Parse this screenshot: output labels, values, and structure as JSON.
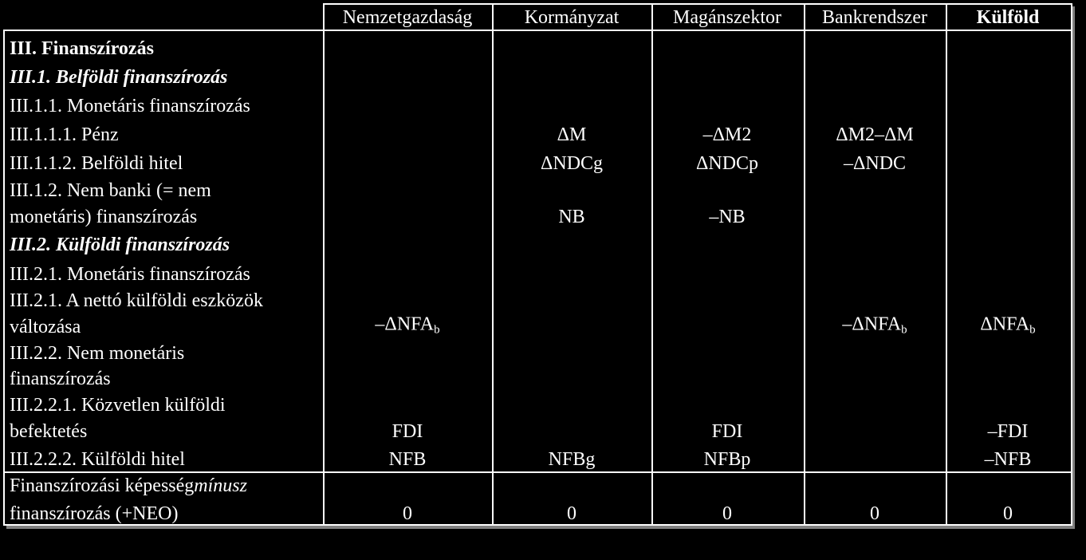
{
  "header": [
    "Nemzetgazdaság",
    "Kormányzat",
    "Magánszektor",
    "Bankrendszer",
    "Külföld"
  ],
  "rows": [
    {
      "label": [
        "III. Finanszírozás"
      ],
      "style": "bold",
      "cells": [
        null,
        null,
        null,
        null,
        null
      ]
    },
    {
      "label": [
        "III.1. Belföldi finanszírozás"
      ],
      "style": "bold-italic",
      "cells": [
        null,
        null,
        null,
        null,
        null
      ]
    },
    {
      "label": [
        "III.1.1. Monetáris finanszírozás"
      ],
      "style": "normal",
      "cells": [
        null,
        null,
        null,
        null,
        null
      ]
    },
    {
      "label": [
        "III.1.1.1. Pénz"
      ],
      "style": "normal",
      "cells": [
        null,
        "ΔM",
        "–ΔM2",
        "ΔM2–ΔM",
        null
      ]
    },
    {
      "label": [
        "III.1.1.2. Belföldi hitel"
      ],
      "style": "normal",
      "cells": [
        null,
        "ΔNDCg",
        "ΔNDCp",
        "–ΔNDC",
        null
      ]
    },
    {
      "label": [
        "III.1.2. Nem banki (= nem",
        "monetáris) finanszírozás"
      ],
      "style": "normal",
      "cells": [
        null,
        "NB",
        "–NB",
        null,
        null
      ]
    },
    {
      "label": [
        "III.2. Külföldi finanszírozás"
      ],
      "style": "bold-italic",
      "cells": [
        null,
        null,
        null,
        null,
        null
      ]
    },
    {
      "label": [
        "III.2.1. Monetáris finanszírozás"
      ],
      "style": "normal",
      "cells": [
        null,
        null,
        null,
        null,
        null
      ]
    },
    {
      "label": [
        "III.2.1. A nettó külföldi eszközök",
        "változása"
      ],
      "style": "normal",
      "cells": [
        {
          "text": "–ΔNFA",
          "sub": "b"
        },
        null,
        null,
        {
          "text": "–ΔNFA",
          "sub": "b"
        },
        {
          "text": "ΔNFA",
          "sub": "b"
        }
      ]
    },
    {
      "label": [
        "III.2.2. Nem monetáris",
        "finanszírozás"
      ],
      "style": "normal",
      "cells": [
        null,
        null,
        null,
        null,
        null
      ]
    },
    {
      "label": [
        "III.2.2.1. Közvetlen külföldi",
        "befektetés"
      ],
      "style": "normal",
      "cells": [
        "FDI",
        null,
        "FDI",
        null,
        "–FDI"
      ]
    },
    {
      "label": [
        "III.2.2.2. Külföldi hitel"
      ],
      "style": "normal",
      "cells": [
        "NFB",
        "NFBg",
        "NFBp",
        null,
        "–NFB"
      ]
    }
  ],
  "footer": {
    "label_line1": "Finanszírozási képesség",
    "label_emphasis": "mínusz",
    "label_line2": "finanszírozás (+NEO)",
    "cells": [
      0,
      0,
      0,
      0,
      0
    ]
  }
}
